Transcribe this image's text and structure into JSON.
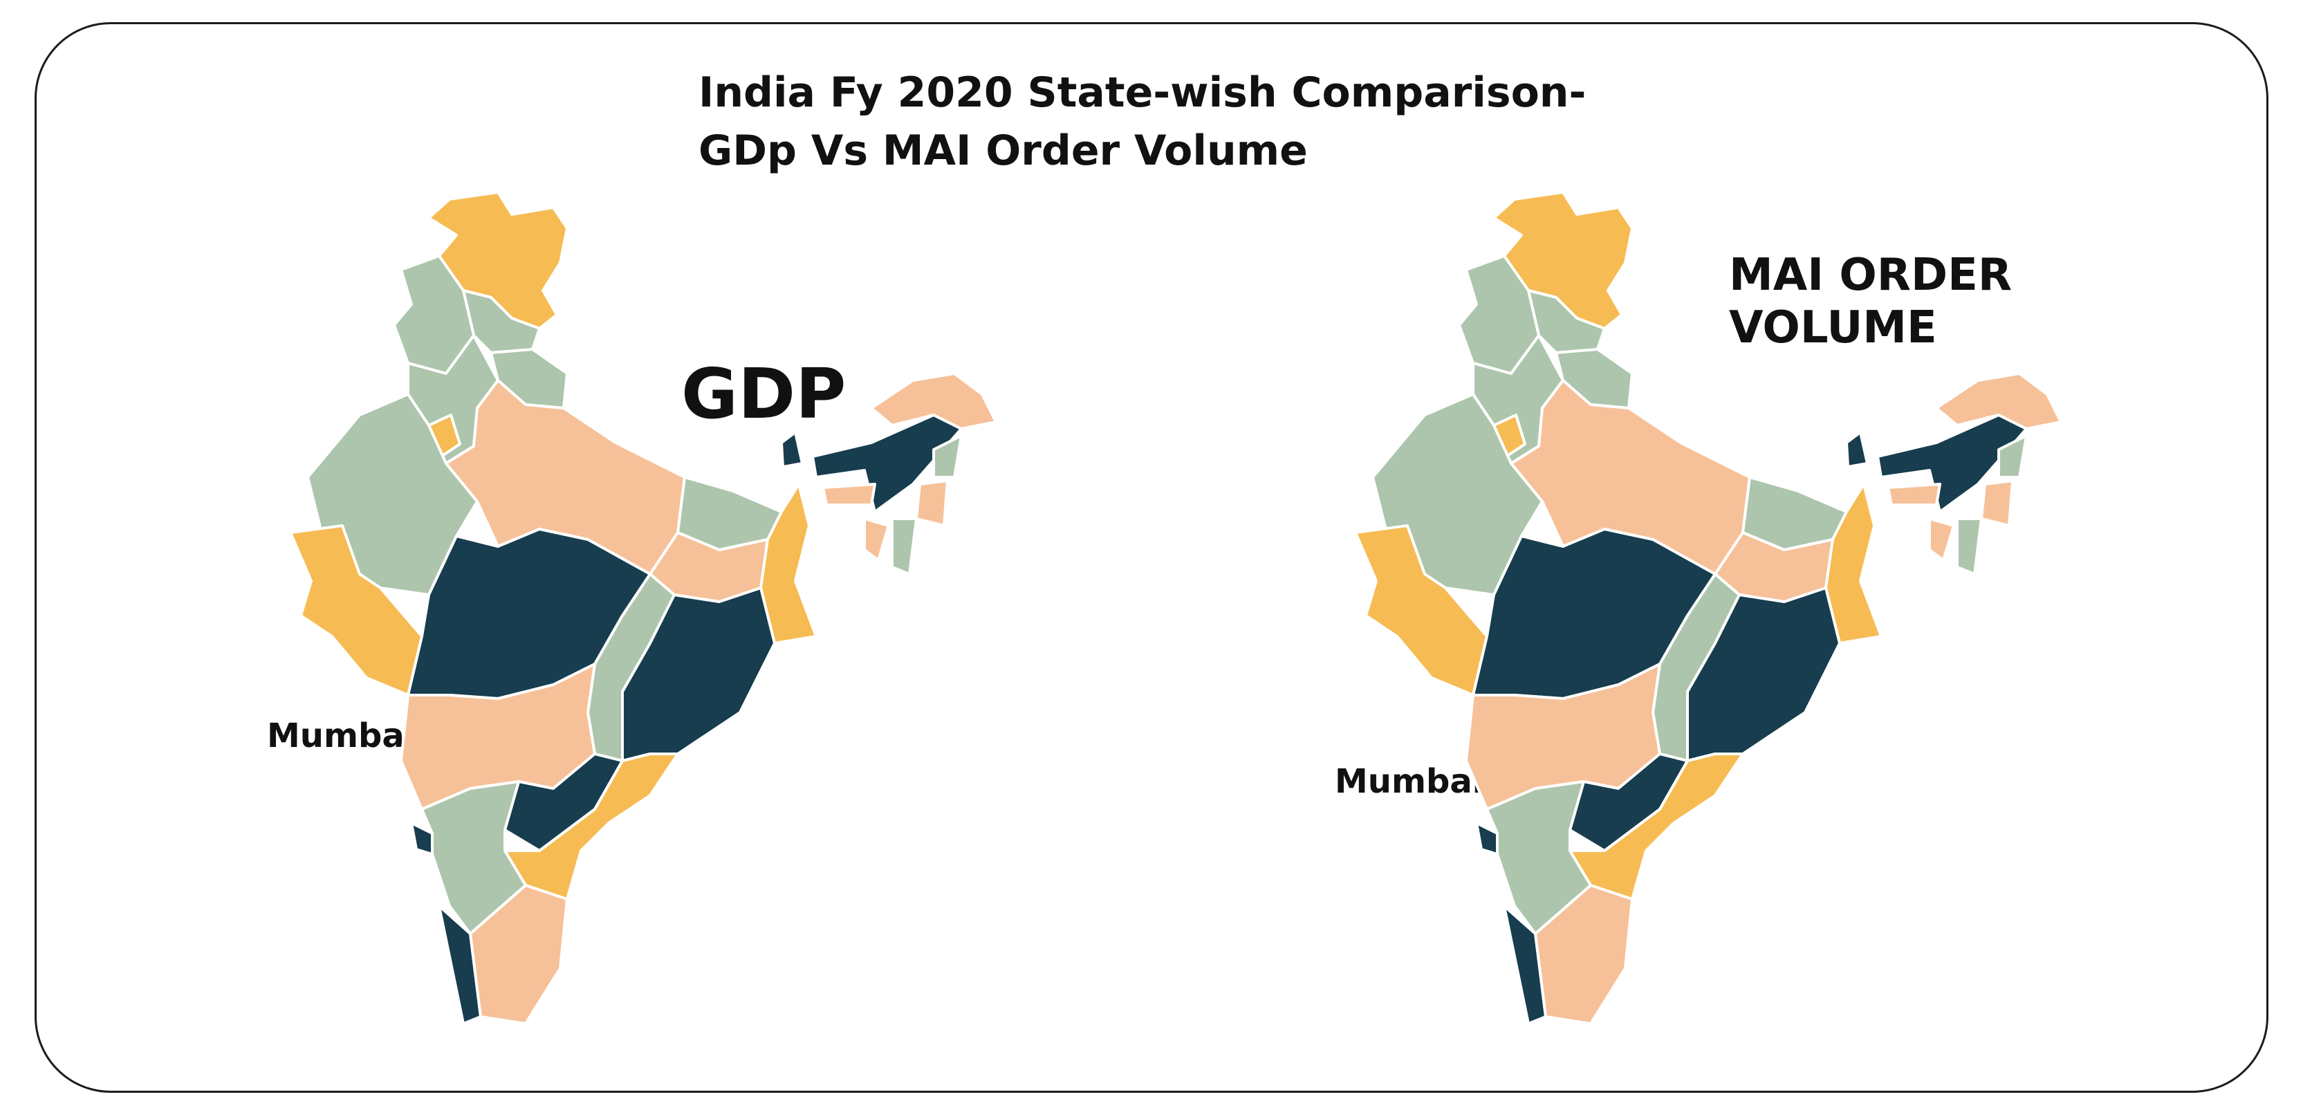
{
  "title": {
    "line1": "India Fy 2020 State-wish Comparison-",
    "line2": "GDp Vs MAI Order Volume"
  },
  "maps": {
    "left": {
      "heading": "GDP",
      "city_label": "Mumbai"
    },
    "right": {
      "heading_line1": "MAI ORDER",
      "heading_line2": "VOLUME",
      "city_label": "Mumbai"
    }
  },
  "colors": {
    "gold": "#F6BB52",
    "peach": "#F6C199",
    "sage": "#ADC5AC",
    "navy": "#173D4F",
    "border": "#1B1B1B"
  },
  "state_colors": {
    "left": {
      "jammu-kashmir": "gold",
      "himachal-pradesh": "sage",
      "punjab": "sage",
      "haryana": "sage",
      "delhi": "gold",
      "uttarakhand": "sage",
      "rajasthan": "sage",
      "uttar-pradesh": "peach",
      "gujarat": "gold",
      "madhya-pradesh": "navy",
      "bihar": "sage",
      "jharkhand": "peach",
      "west-bengal": "gold",
      "sikkim": "navy",
      "chhattisgarh": "sage",
      "odisha": "navy",
      "maharashtra": "peach",
      "telangana": "navy",
      "andhra-pradesh": "gold",
      "karnataka": "sage",
      "goa": "navy",
      "kerala": "navy",
      "tamil-nadu": "peach",
      "assam": "navy",
      "arunachal-pradesh": "peach",
      "meghalaya": "peach",
      "nagaland": "sage",
      "manipur": "peach",
      "mizoram": "sage",
      "tripura": "peach"
    },
    "right": {
      "jammu-kashmir": "gold",
      "himachal-pradesh": "sage",
      "punjab": "sage",
      "haryana": "sage",
      "delhi": "gold",
      "uttarakhand": "sage",
      "rajasthan": "sage",
      "uttar-pradesh": "peach",
      "gujarat": "gold",
      "madhya-pradesh": "navy",
      "bihar": "sage",
      "jharkhand": "peach",
      "west-bengal": "gold",
      "sikkim": "navy",
      "chhattisgarh": "sage",
      "odisha": "navy",
      "maharashtra": "peach",
      "telangana": "navy",
      "andhra-pradesh": "gold",
      "karnataka": "sage",
      "goa": "navy",
      "kerala": "navy",
      "tamil-nadu": "peach",
      "assam": "navy",
      "arunachal-pradesh": "peach",
      "meghalaya": "peach",
      "nagaland": "sage",
      "manipur": "peach",
      "mizoram": "sage",
      "tripura": "peach"
    }
  }
}
